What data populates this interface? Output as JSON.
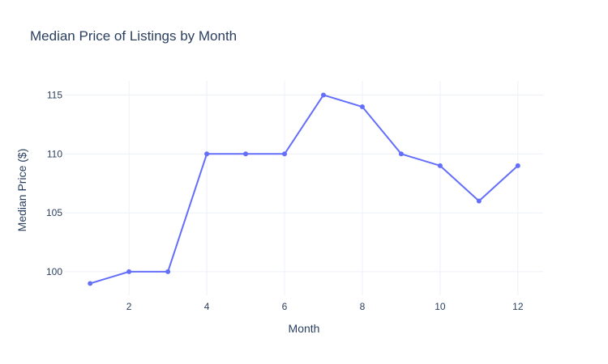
{
  "chart_data": {
    "type": "line",
    "title": "Median Price of Listings by Month",
    "xlabel": "Month",
    "ylabel": "Median Price ($)",
    "x": [
      1,
      2,
      3,
      4,
      5,
      6,
      7,
      8,
      9,
      10,
      11,
      12
    ],
    "series": [
      {
        "values": [
          99,
          100,
          100,
          110,
          110,
          110,
          115,
          114,
          110,
          109,
          106,
          109
        ]
      }
    ],
    "xlim": [
      0.35,
      12.65
    ],
    "ylim": [
      98,
      116.2
    ],
    "xticks": [
      2,
      4,
      6,
      8,
      10,
      12
    ],
    "yticks": [
      100,
      105,
      110,
      115
    ],
    "grid": true,
    "color": "#636efa"
  }
}
